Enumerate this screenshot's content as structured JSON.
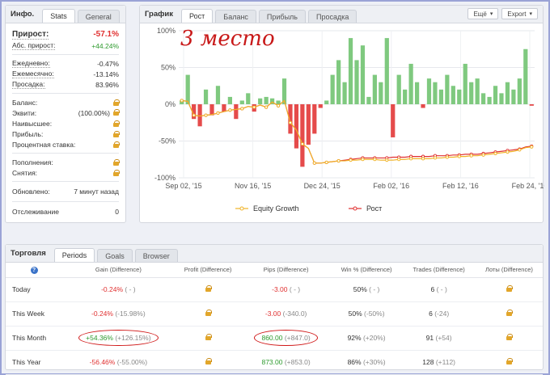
{
  "info": {
    "title": "Инфо.",
    "tabs": [
      "Stats",
      "General"
    ],
    "rows_top": [
      {
        "label": "Прирост:",
        "value": "-57.1%"
      },
      {
        "label": "Абс. прирост:",
        "value": "+44.24%"
      }
    ],
    "rows_mid": [
      {
        "label": "Ежедневно:",
        "value": "-0.47%"
      },
      {
        "label": "Ежемесячно:",
        "value": "-13.14%"
      },
      {
        "label": "Просадка:",
        "value": "83.96%"
      }
    ],
    "rows_locked": [
      {
        "label": "Баланс:",
        "extra": ""
      },
      {
        "label": "Эквити:",
        "extra": "(100.00%)"
      },
      {
        "label": "Наивысшее:",
        "extra": ""
      },
      {
        "label": "Прибыль:",
        "extra": ""
      },
      {
        "label": "Процентная ставка:",
        "extra": ""
      }
    ],
    "rows_deposit": [
      {
        "label": "Пополнения:"
      },
      {
        "label": "Снятия:"
      }
    ],
    "rows_bottom": [
      {
        "label": "Обновлено:",
        "value": "7 минут назад"
      },
      {
        "label": "Отслеживание",
        "value": "0"
      }
    ]
  },
  "chart_panel": {
    "title": "График",
    "tabs": [
      "Рост",
      "Баланс",
      "Прибыль",
      "Просадка"
    ],
    "buttons": [
      "Ещё",
      "Export"
    ],
    "overlay": "3 место"
  },
  "chart_data": {
    "type": "bar",
    "x_tick_labels": [
      "Sep 02, '15",
      "Nov 16, '15",
      "Dec 24, '15",
      "Feb 02, '16",
      "Feb 12, '16",
      "Feb 24, '16"
    ],
    "y_tick_labels": [
      "100%",
      "50%",
      "0%",
      "-50%",
      "-100%"
    ],
    "ylim": [
      -100,
      100
    ],
    "legend": [
      "Equity Growth",
      "Рост"
    ],
    "bars": [
      5,
      40,
      -20,
      -30,
      20,
      -15,
      25,
      -10,
      10,
      -20,
      5,
      15,
      -10,
      8,
      10,
      8,
      5,
      35,
      -40,
      -60,
      -85,
      -55,
      -40,
      -5,
      5,
      40,
      60,
      30,
      90,
      60,
      80,
      10,
      40,
      30,
      90,
      -45,
      40,
      20,
      55,
      30,
      -5,
      35,
      30,
      20,
      40,
      25,
      20,
      55,
      30,
      35,
      15,
      10,
      25,
      15,
      30,
      20,
      35,
      75,
      -2
    ],
    "series": [
      {
        "name": "Рост",
        "values": [
          5,
          4,
          -15,
          -16,
          -15,
          -14,
          -12,
          -10,
          -8,
          -7,
          -6,
          -3,
          -4,
          -1,
          -4,
          3,
          -2,
          5,
          -25,
          -35,
          -54,
          -60,
          -80,
          -80,
          -79,
          -78,
          -77,
          -76,
          -75,
          -74,
          -73,
          -73,
          -73,
          -73,
          -73,
          -72,
          -72,
          -72,
          -71,
          -71,
          -71,
          -71,
          -70,
          -70,
          -70,
          -69,
          -69,
          -68,
          -68,
          -68,
          -67,
          -66,
          -65,
          -64,
          -63,
          -62,
          -61,
          -58,
          -57
        ]
      },
      {
        "name": "Equity Growth",
        "values": [
          5,
          4,
          -15,
          -16,
          -15,
          -14,
          -12,
          -10,
          -8,
          -7,
          -6,
          -3,
          -4,
          -1,
          -4,
          3,
          -2,
          5,
          -25,
          -35,
          -54,
          -60,
          -80,
          -80,
          -79,
          -78,
          -77,
          -77,
          -76,
          -76,
          -75,
          -75,
          -75,
          -76,
          -76,
          -76,
          -75,
          -75,
          -74,
          -74,
          -74,
          -74,
          -73,
          -73,
          -72,
          -72,
          -71,
          -71,
          -70,
          -70,
          -69,
          -68,
          -67,
          -66,
          -65,
          -64,
          -62,
          -59,
          -58
        ]
      }
    ],
    "colors": {
      "positive": "#7fc97f",
      "negative": "#e54b4b",
      "equity": "#f0b429",
      "growth": "#e03030"
    },
    "grid": true
  },
  "trade": {
    "title": "Торговля",
    "tabs": [
      "Periods",
      "Goals",
      "Browser"
    ],
    "columns": [
      "",
      "Gain (Difference)",
      "Profit (Difference)",
      "Pips (Difference)",
      "Win % (Difference)",
      "Trades (Difference)",
      "Лоты (Difference)"
    ],
    "rows": [
      {
        "period": "Today",
        "gain": "-0.24%",
        "gain_diff": "( - )",
        "pips": "-3.00",
        "pips_diff": "( - )",
        "win": "50%",
        "win_diff": "( - )",
        "trades": "6",
        "trades_diff": "( - )"
      },
      {
        "period": "This Week",
        "gain": "-0.24%",
        "gain_diff": "(-15.98%)",
        "pips": "-3.00",
        "pips_diff": "(-340.0)",
        "win": "50%",
        "win_diff": "(-50%)",
        "trades": "6",
        "trades_diff": "(-24)"
      },
      {
        "period": "This Month",
        "gain": "+54.36%",
        "gain_diff": "(+126.15%)",
        "pips": "860.00",
        "pips_diff": "(+847.0)",
        "win": "92%",
        "win_diff": "(+20%)",
        "trades": "91",
        "trades_diff": "(+54)"
      },
      {
        "period": "This Year",
        "gain": "-56.46%",
        "gain_diff": "(-55.00%)",
        "pips": "873.00",
        "pips_diff": "(+853.0)",
        "win": "86%",
        "win_diff": "(+30%)",
        "trades": "128",
        "trades_diff": "(+112)"
      }
    ]
  }
}
